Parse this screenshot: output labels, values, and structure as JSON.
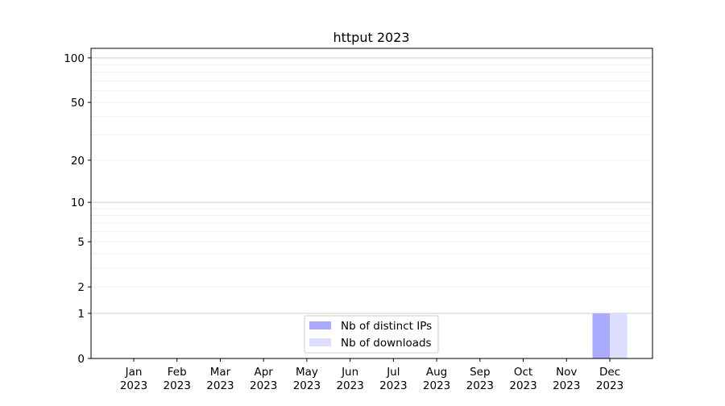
{
  "chart_data": {
    "type": "bar",
    "title": "httput 2023",
    "xlabel": "",
    "ylabel": "",
    "y_scale": "log(1+y)",
    "ylim": [
      0,
      116
    ],
    "grid": "horizontal, major and minor",
    "legend_position": "lower-center",
    "categories": [
      "Jan\n2023",
      "Feb\n2023",
      "Mar\n2023",
      "Apr\n2023",
      "May\n2023",
      "Jun\n2023",
      "Jul\n2023",
      "Aug\n2023",
      "Sep\n2023",
      "Oct\n2023",
      "Nov\n2023",
      "Dec\n2023"
    ],
    "x_tick_labels": [
      [
        "Jan",
        "2023"
      ],
      [
        "Feb",
        "2023"
      ],
      [
        "Mar",
        "2023"
      ],
      [
        "Apr",
        "2023"
      ],
      [
        "May",
        "2023"
      ],
      [
        "Jun",
        "2023"
      ],
      [
        "Jul",
        "2023"
      ],
      [
        "Aug",
        "2023"
      ],
      [
        "Sep",
        "2023"
      ],
      [
        "Oct",
        "2023"
      ],
      [
        "Nov",
        "2023"
      ],
      [
        "Dec",
        "2023"
      ]
    ],
    "y_ticks": [
      0,
      1,
      2,
      5,
      10,
      20,
      50,
      100
    ],
    "y_tick_labels": [
      "0",
      "1",
      "2",
      "5",
      "10",
      "20",
      "50",
      "100"
    ],
    "series": [
      {
        "name": "Nb of distinct IPs",
        "color": "#aaaaff",
        "values": [
          0,
          0,
          0,
          0,
          0,
          0,
          0,
          0,
          0,
          0,
          0,
          1
        ]
      },
      {
        "name": "Nb of downloads",
        "color": "#ddddff",
        "values": [
          0,
          0,
          0,
          0,
          0,
          0,
          0,
          0,
          0,
          0,
          0,
          1
        ]
      }
    ]
  }
}
